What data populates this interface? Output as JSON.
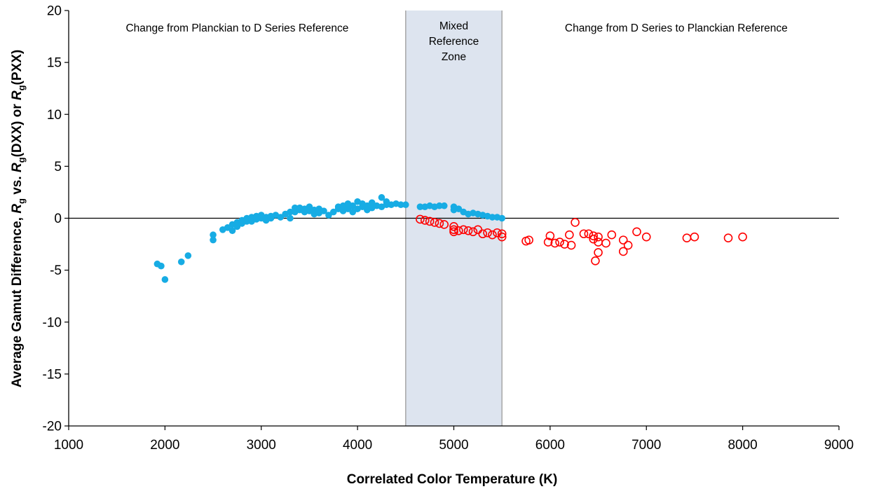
{
  "chart_data": {
    "type": "scatter",
    "title": "",
    "xlabel": "Correlated Color Temperature (K)",
    "ylabel": {
      "prefix": "Average Gamut Difference, ",
      "r1": "R",
      "sub1": "g",
      "mid1": " vs. ",
      "r2": "R",
      "sub2": "g",
      "mid2": "(DXX) or ",
      "r3": "R",
      "sub3": "g",
      "suffix": "(PXX)"
    },
    "xlim": [
      1000,
      9000
    ],
    "ylim": [
      -20,
      20
    ],
    "xticks": [
      1000,
      2000,
      3000,
      4000,
      5000,
      6000,
      7000,
      8000,
      9000
    ],
    "yticks": [
      -20,
      -15,
      -10,
      -5,
      0,
      5,
      10,
      15,
      20
    ],
    "grid": false,
    "legend": "none",
    "shaded_band": {
      "x": [
        4500,
        5500
      ],
      "color": "#dde4ef",
      "border_color": "#a6a6a6"
    },
    "annotations": [
      {
        "id": "left-zone-label",
        "lines": [
          "Change from Planckian to D Series Reference"
        ]
      },
      {
        "id": "mixed-zone-label",
        "lines": [
          "Mixed",
          "Reference",
          "Zone"
        ]
      },
      {
        "id": "right-zone-label",
        "lines": [
          "Change from D Series to Planckian Reference"
        ]
      }
    ],
    "series": [
      {
        "marker": "filled-circle",
        "color": "#17ace4",
        "points": [
          [
            1920,
            -4.4
          ],
          [
            1960,
            -4.6
          ],
          [
            2000,
            -5.9
          ],
          [
            2170,
            -4.2
          ],
          [
            2240,
            -3.6
          ],
          [
            2500,
            -1.6
          ],
          [
            2500,
            -2.1
          ],
          [
            2600,
            -1.1
          ],
          [
            2650,
            -0.9
          ],
          [
            2700,
            -1.2
          ],
          [
            2700,
            -0.6
          ],
          [
            2750,
            -0.8
          ],
          [
            2750,
            -0.4
          ],
          [
            2800,
            -0.5
          ],
          [
            2800,
            -0.2
          ],
          [
            2850,
            -0.3
          ],
          [
            2850,
            0.0
          ],
          [
            2900,
            -0.3
          ],
          [
            2900,
            0.1
          ],
          [
            2950,
            -0.1
          ],
          [
            2950,
            0.2
          ],
          [
            3000,
            0.0
          ],
          [
            3000,
            0.3
          ],
          [
            3050,
            0.1
          ],
          [
            3050,
            -0.2
          ],
          [
            3100,
            0.0
          ],
          [
            3100,
            0.2
          ],
          [
            3150,
            0.3
          ],
          [
            3200,
            0.1
          ],
          [
            3250,
            0.4
          ],
          [
            3300,
            0.6
          ],
          [
            3300,
            0.0
          ],
          [
            3350,
            1.0
          ],
          [
            3350,
            0.6
          ],
          [
            3400,
            0.8
          ],
          [
            3400,
            1.0
          ],
          [
            3450,
            0.6
          ],
          [
            3450,
            0.9
          ],
          [
            3500,
            0.7
          ],
          [
            3500,
            1.1
          ],
          [
            3550,
            0.4
          ],
          [
            3550,
            0.8
          ],
          [
            3600,
            0.9
          ],
          [
            3600,
            0.5
          ],
          [
            3650,
            0.7
          ],
          [
            3700,
            0.3
          ],
          [
            3750,
            0.6
          ],
          [
            3800,
            0.9
          ],
          [
            3800,
            1.1
          ],
          [
            3850,
            0.7
          ],
          [
            3850,
            1.2
          ],
          [
            3900,
            0.9
          ],
          [
            3900,
            1.4
          ],
          [
            3950,
            0.6
          ],
          [
            3950,
            1.2
          ],
          [
            4000,
            1.6
          ],
          [
            4000,
            0.9
          ],
          [
            4050,
            1.1
          ],
          [
            4050,
            1.4
          ],
          [
            4100,
            0.8
          ],
          [
            4100,
            1.2
          ],
          [
            4150,
            1.0
          ],
          [
            4150,
            1.5
          ],
          [
            4200,
            1.2
          ],
          [
            4250,
            2.0
          ],
          [
            4250,
            1.1
          ],
          [
            4300,
            1.6
          ],
          [
            4300,
            1.3
          ],
          [
            4350,
            1.3
          ],
          [
            4400,
            1.4
          ],
          [
            4450,
            1.3
          ],
          [
            4500,
            1.3
          ],
          [
            4650,
            1.1
          ],
          [
            4700,
            1.1
          ],
          [
            4750,
            1.2
          ],
          [
            4800,
            1.1
          ],
          [
            4850,
            1.2
          ],
          [
            4900,
            1.2
          ],
          [
            5000,
            1.1
          ],
          [
            5000,
            0.8
          ],
          [
            5050,
            0.9
          ],
          [
            5100,
            0.6
          ],
          [
            5150,
            0.4
          ],
          [
            5200,
            0.5
          ],
          [
            5250,
            0.4
          ],
          [
            5300,
            0.3
          ],
          [
            5350,
            0.2
          ],
          [
            5400,
            0.1
          ],
          [
            5450,
            0.1
          ],
          [
            5500,
            0.0
          ]
        ]
      },
      {
        "marker": "open-circle",
        "color": "#ff0000",
        "points": [
          [
            4650,
            -0.1
          ],
          [
            4700,
            -0.2
          ],
          [
            4750,
            -0.3
          ],
          [
            4800,
            -0.4
          ],
          [
            4850,
            -0.5
          ],
          [
            4900,
            -0.6
          ],
          [
            5000,
            -0.8
          ],
          [
            5000,
            -1.1
          ],
          [
            5000,
            -1.3
          ],
          [
            5050,
            -1.2
          ],
          [
            5100,
            -1.1
          ],
          [
            5150,
            -1.2
          ],
          [
            5200,
            -1.3
          ],
          [
            5250,
            -1.1
          ],
          [
            5300,
            -1.5
          ],
          [
            5350,
            -1.4
          ],
          [
            5400,
            -1.6
          ],
          [
            5450,
            -1.4
          ],
          [
            5500,
            -1.8
          ],
          [
            5500,
            -1.5
          ],
          [
            5750,
            -2.2
          ],
          [
            5780,
            -2.1
          ],
          [
            5980,
            -2.3
          ],
          [
            6000,
            -1.7
          ],
          [
            6050,
            -2.4
          ],
          [
            6100,
            -2.3
          ],
          [
            6150,
            -2.5
          ],
          [
            6200,
            -1.6
          ],
          [
            6220,
            -2.6
          ],
          [
            6260,
            -0.4
          ],
          [
            6350,
            -1.5
          ],
          [
            6400,
            -1.5
          ],
          [
            6450,
            -1.7
          ],
          [
            6450,
            -2.0
          ],
          [
            6470,
            -4.1
          ],
          [
            6500,
            -2.3
          ],
          [
            6500,
            -3.3
          ],
          [
            6500,
            -1.8
          ],
          [
            6580,
            -2.4
          ],
          [
            6640,
            -1.6
          ],
          [
            6760,
            -2.1
          ],
          [
            6760,
            -3.2
          ],
          [
            6810,
            -2.6
          ],
          [
            6900,
            -1.3
          ],
          [
            7000,
            -1.8
          ],
          [
            7420,
            -1.9
          ],
          [
            7500,
            -1.8
          ],
          [
            7850,
            -1.9
          ],
          [
            8000,
            -1.8
          ]
        ]
      }
    ]
  }
}
